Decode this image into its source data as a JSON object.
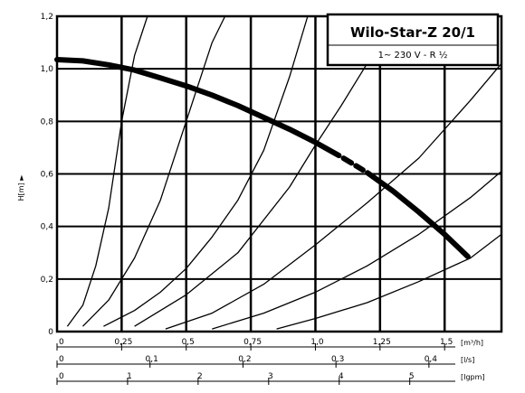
{
  "chart_data": {
    "type": "line",
    "title": "Wilo-Star-Z 20/1",
    "subtitle": "1~ 230 V -    R ½",
    "ylabel": "H[m] ►",
    "y_ticks": [
      "0",
      "0,2",
      "0,4",
      "0,6",
      "0,8",
      "1,0",
      "1,2"
    ],
    "ylim": [
      0,
      1.2
    ],
    "grid": true,
    "x_axes": [
      {
        "unit": "[m³/h]",
        "range": [
          0,
          1.72
        ],
        "ticks": [
          {
            "v": 0,
            "label": "0"
          },
          {
            "v": 0.25,
            "label": "0,25"
          },
          {
            "v": 0.5,
            "label": "0,5"
          },
          {
            "v": 0.75,
            "label": "0,75"
          },
          {
            "v": 1.0,
            "label": "1,0"
          },
          {
            "v": 1.25,
            "label": "1,25"
          },
          {
            "v": 1.5,
            "label": "1,5"
          }
        ]
      },
      {
        "unit": "[l/s]",
        "range": [
          0,
          0.478
        ],
        "ticks": [
          {
            "v": 0,
            "label": "0"
          },
          {
            "v": 0.1,
            "label": "0,1"
          },
          {
            "v": 0.2,
            "label": "0,2"
          },
          {
            "v": 0.3,
            "label": "0,3"
          },
          {
            "v": 0.4,
            "label": "0,4"
          }
        ]
      },
      {
        "unit": "[Igpm]",
        "range": [
          0,
          6.3
        ],
        "ticks": [
          {
            "v": 0,
            "label": "0"
          },
          {
            "v": 1,
            "label": "1"
          },
          {
            "v": 2,
            "label": "2"
          },
          {
            "v": 3,
            "label": "3"
          },
          {
            "v": 4,
            "label": "4"
          },
          {
            "v": 5,
            "label": "5"
          }
        ]
      }
    ],
    "series": [
      {
        "role": "pump-curve",
        "x": [
          0,
          0.1,
          0.2,
          0.3,
          0.4,
          0.5,
          0.6,
          0.7,
          0.8,
          0.9,
          1.0,
          1.1,
          1.2,
          1.3,
          1.4,
          1.5,
          1.59
        ],
        "y": [
          1.035,
          1.03,
          1.015,
          0.995,
          0.965,
          0.935,
          0.9,
          0.86,
          0.815,
          0.77,
          0.72,
          0.665,
          0.605,
          0.535,
          0.455,
          0.37,
          0.285
        ]
      }
    ],
    "system_curves": [
      {
        "x": [
          0.04,
          0.1,
          0.15,
          0.2,
          0.25,
          0.3,
          0.35
        ],
        "y": [
          0.02,
          0.1,
          0.25,
          0.47,
          0.8,
          1.05,
          1.2
        ]
      },
      {
        "x": [
          0.1,
          0.2,
          0.3,
          0.4,
          0.5,
          0.6,
          0.65
        ],
        "y": [
          0.02,
          0.12,
          0.28,
          0.5,
          0.8,
          1.1,
          1.2
        ]
      },
      {
        "x": [
          0.18,
          0.3,
          0.4,
          0.5,
          0.6,
          0.7,
          0.8,
          0.9,
          0.97
        ],
        "y": [
          0.02,
          0.08,
          0.15,
          0.24,
          0.36,
          0.5,
          0.69,
          0.97,
          1.2
        ]
      },
      {
        "x": [
          0.3,
          0.5,
          0.7,
          0.9,
          1.0,
          1.1,
          1.2,
          1.28
        ],
        "y": [
          0.02,
          0.14,
          0.3,
          0.55,
          0.71,
          0.86,
          1.02,
          1.2
        ]
      },
      {
        "x": [
          0.42,
          0.6,
          0.8,
          1.0,
          1.2,
          1.4,
          1.6,
          1.72
        ],
        "y": [
          0.01,
          0.07,
          0.18,
          0.33,
          0.49,
          0.66,
          0.88,
          1.02
        ]
      },
      {
        "x": [
          0.6,
          0.8,
          1.0,
          1.2,
          1.4,
          1.6,
          1.72
        ],
        "y": [
          0.01,
          0.07,
          0.15,
          0.25,
          0.37,
          0.51,
          0.61
        ]
      },
      {
        "x": [
          0.85,
          1.0,
          1.2,
          1.4,
          1.6,
          1.72
        ],
        "y": [
          0.01,
          0.05,
          0.11,
          0.19,
          0.28,
          0.37
        ]
      }
    ]
  }
}
